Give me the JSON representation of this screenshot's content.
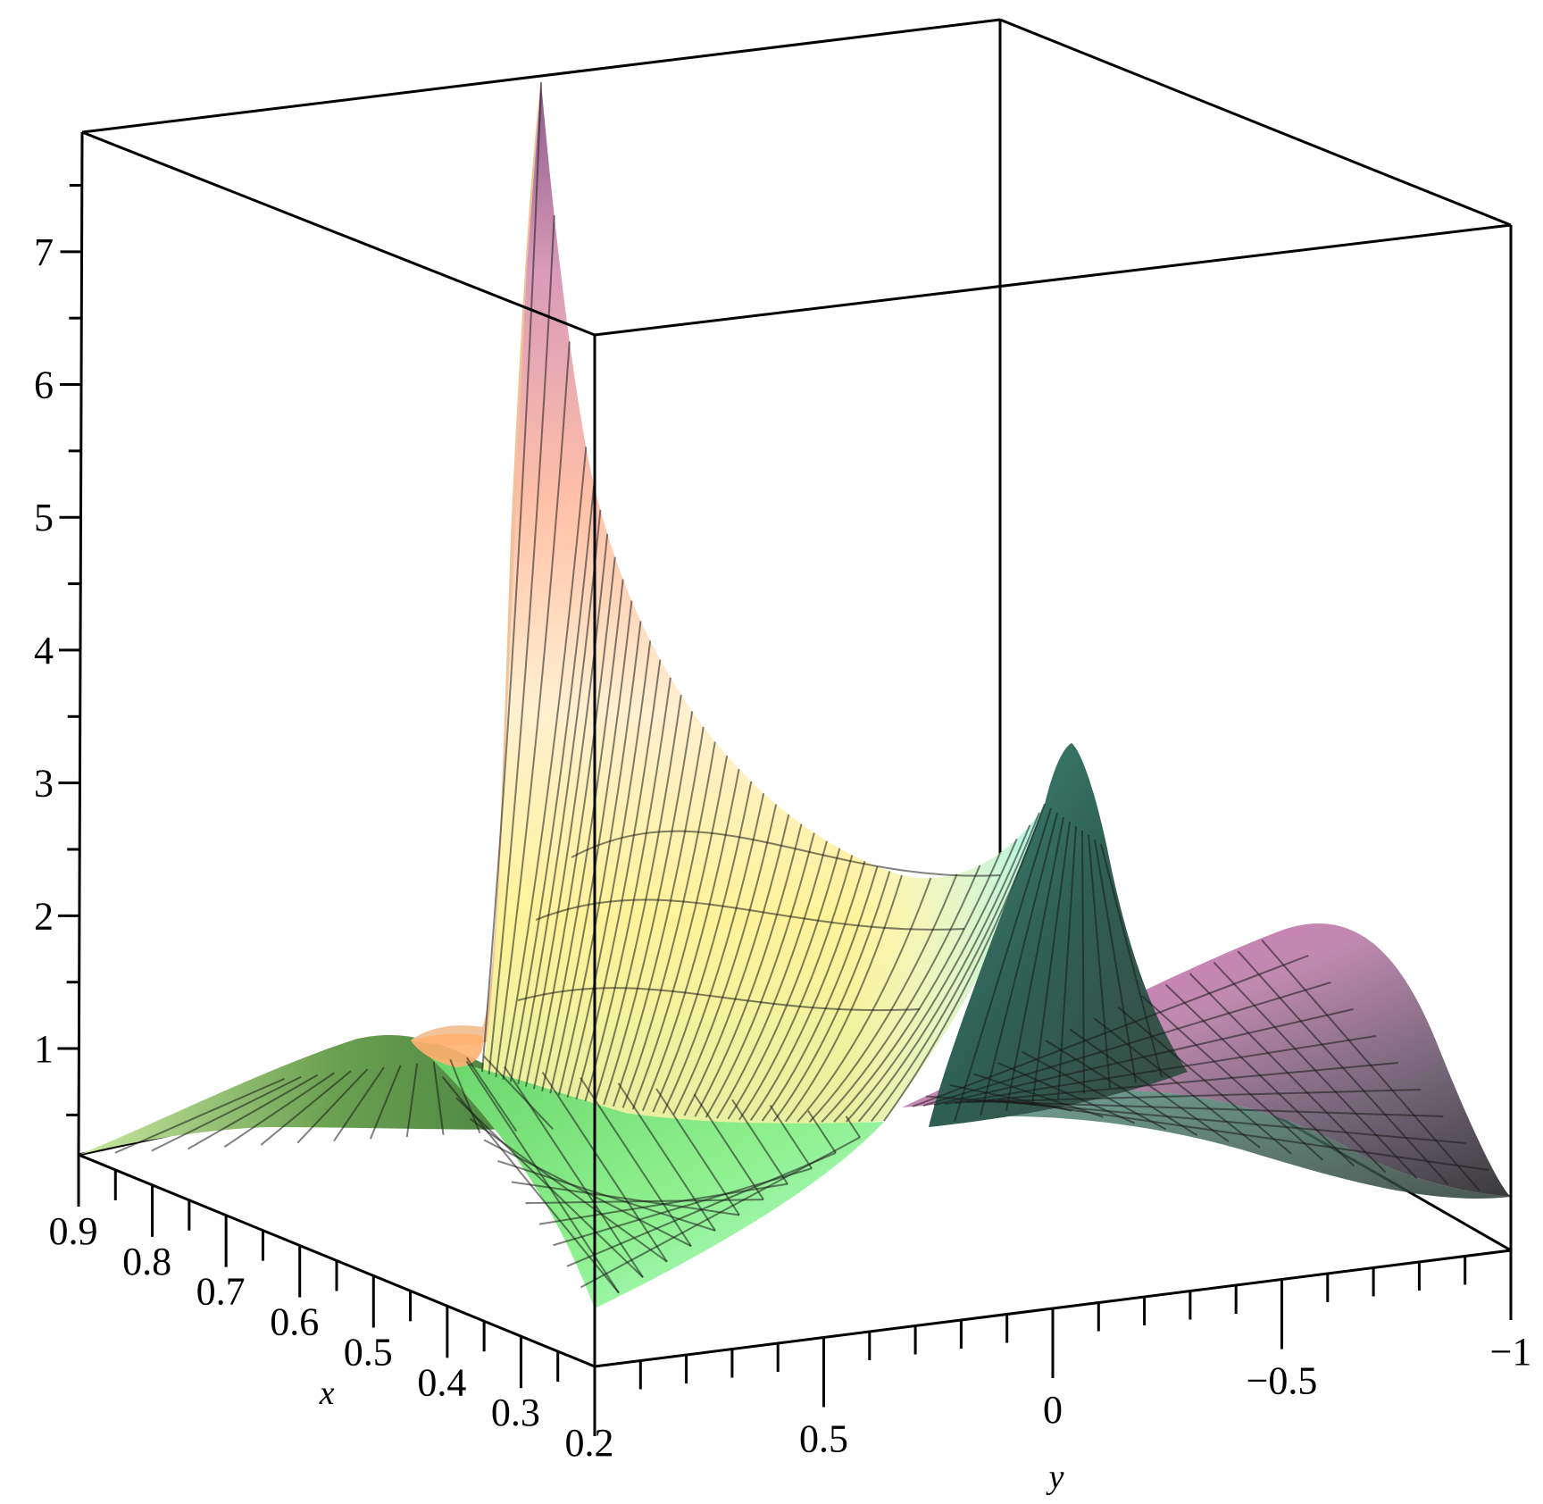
{
  "chart_data": {
    "type": "surface3d",
    "title": "",
    "xlabel": "x",
    "ylabel": "y",
    "zlabel": "",
    "xlim": [
      0.2,
      0.9
    ],
    "ylim": [
      -1,
      1
    ],
    "zlim": [
      0.2,
      7.9
    ],
    "x_ticks": [
      {
        "value": 0.9,
        "label": "0.9"
      },
      {
        "value": 0.8,
        "label": "0.8"
      },
      {
        "value": 0.7,
        "label": "0.7"
      },
      {
        "value": 0.6,
        "label": "0.6"
      },
      {
        "value": 0.5,
        "label": "0.5"
      },
      {
        "value": 0.4,
        "label": "0.4"
      },
      {
        "value": 0.3,
        "label": "0.3"
      },
      {
        "value": 0.2,
        "label": "0.2"
      }
    ],
    "y_ticks": [
      {
        "value": 0.5,
        "label": "0.5"
      },
      {
        "value": 0,
        "label": "0"
      },
      {
        "value": -0.5,
        "label": "−0.5"
      },
      {
        "value": -1,
        "label": "−1"
      }
    ],
    "z_ticks": [
      {
        "value": 1,
        "label": "1"
      },
      {
        "value": 2,
        "label": "2"
      },
      {
        "value": 3,
        "label": "3"
      },
      {
        "value": 4,
        "label": "4"
      },
      {
        "value": 5,
        "label": "5"
      },
      {
        "value": 6,
        "label": "6"
      },
      {
        "value": 7,
        "label": "7"
      }
    ],
    "grid": false,
    "box": true,
    "colors": {
      "box": "#000000",
      "mesh": "#1a1a1a",
      "palette": [
        "#9cf09c",
        "#3f8f3f",
        "#ffe98a",
        "#ffb0a8",
        "#c890c8",
        "#8a4a8a",
        "#2f5a4a",
        "#a8ffe8"
      ]
    },
    "surface_samples": [
      {
        "x": 0.2,
        "y": 1,
        "z": 0.2
      },
      {
        "x": 0.6,
        "y": 1,
        "z": 1.0
      },
      {
        "x": 0.9,
        "y": 1,
        "z": 0.2
      },
      {
        "x": 0.2,
        "y": 0,
        "z": 0.8
      },
      {
        "x": 0.6,
        "y": 0,
        "z": 0.5
      },
      {
        "x": 0.9,
        "y": 0,
        "z": 7.9
      },
      {
        "x": 0.2,
        "y": -0.2,
        "z": 3.3
      },
      {
        "x": 0.6,
        "y": -0.6,
        "z": 1.4
      },
      {
        "x": 0.2,
        "y": -1,
        "z": 0.4
      },
      {
        "x": 0.9,
        "y": -1,
        "z": 0.4
      }
    ]
  }
}
